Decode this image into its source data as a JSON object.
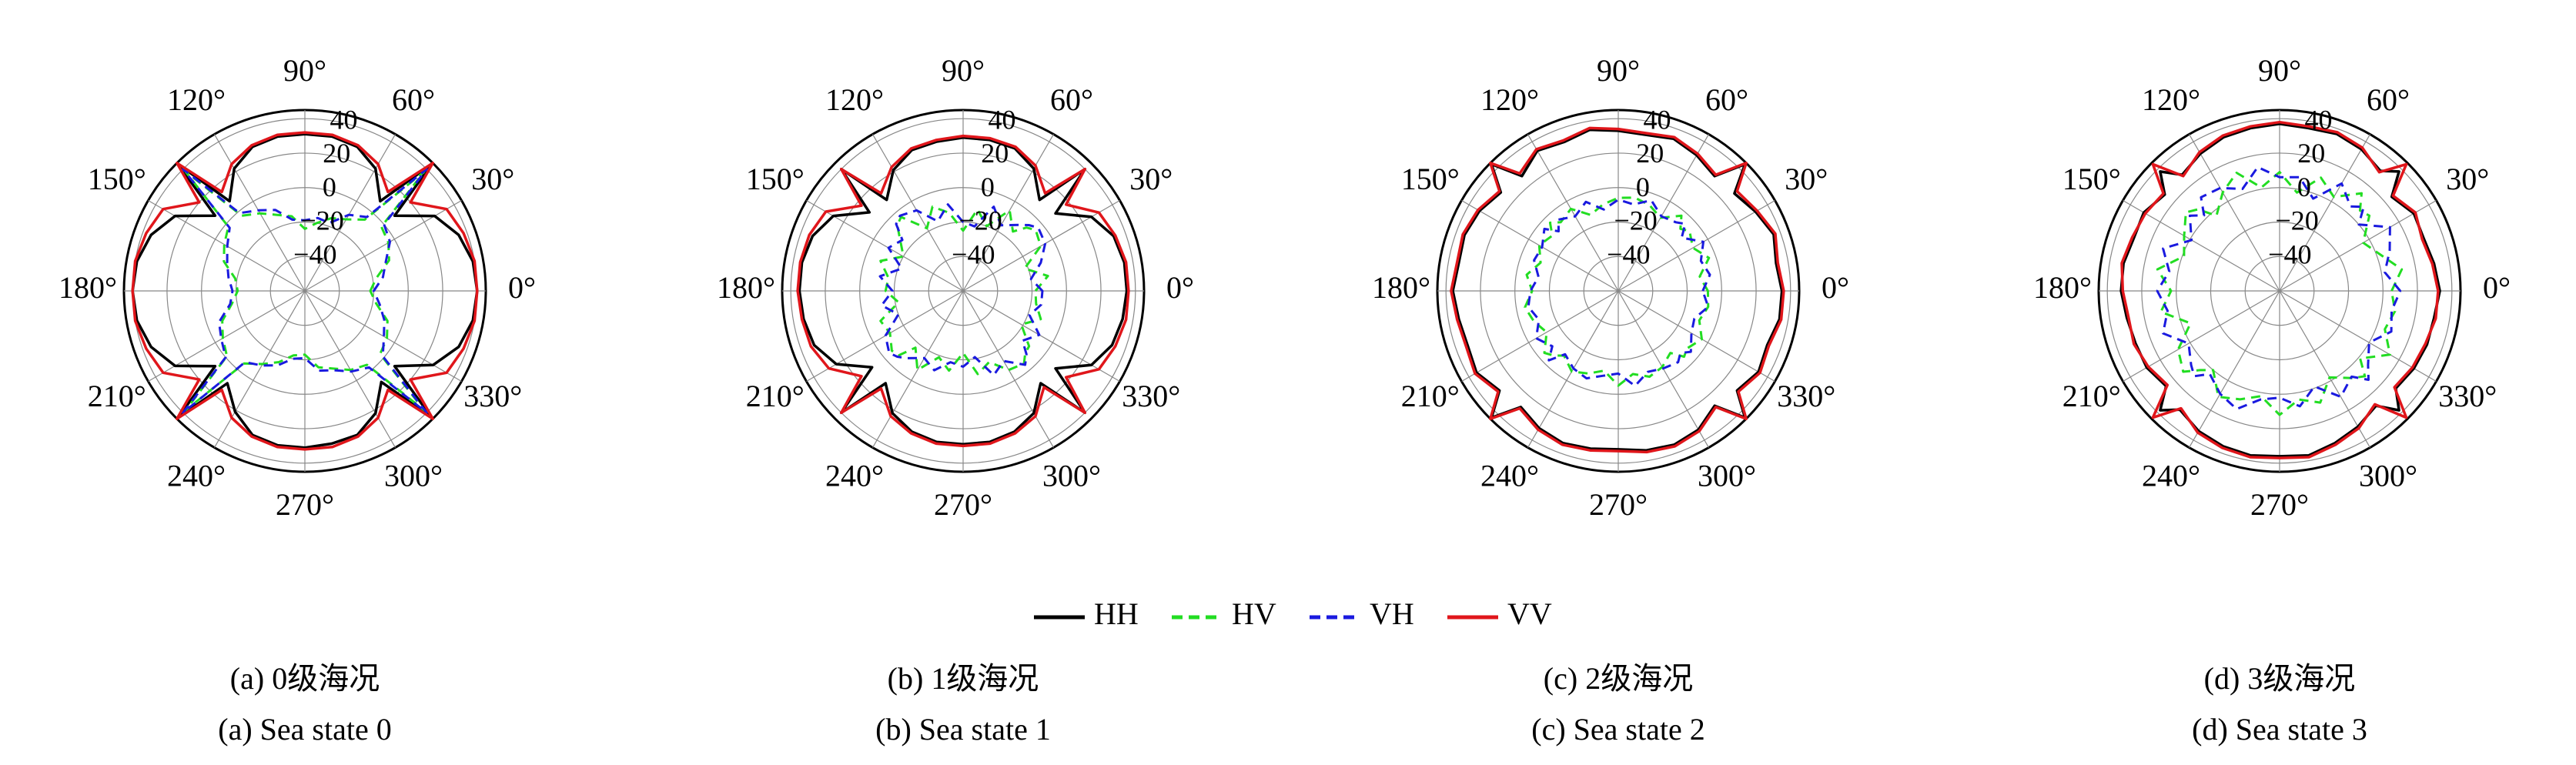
{
  "chart_data": [
    {
      "type": "polar",
      "title": "(a) 0级海况",
      "subtitle": "(a) Sea state 0",
      "theta": [
        0,
        10,
        20,
        30,
        40,
        45,
        50,
        60,
        70,
        80,
        90,
        100,
        110,
        120,
        130,
        135,
        140,
        150,
        160,
        170,
        180,
        190,
        200,
        210,
        220,
        225,
        230,
        240,
        250,
        260,
        270,
        280,
        290,
        300,
        310,
        315,
        320,
        330,
        340,
        350
      ],
      "rlim": [
        -60,
        45
      ],
      "rticks": [
        {
          "value": -40,
          "label": "−40"
        },
        {
          "value": -20,
          "label": "−20"
        },
        0,
        20,
        40
      ],
      "thetaticks": [
        {
          "value": 0,
          "label": "0°"
        },
        {
          "value": 30,
          "label": "30°"
        },
        {
          "value": 60,
          "label": "60°"
        },
        {
          "value": 90,
          "label": "90°"
        },
        {
          "value": 120,
          "label": "120°"
        },
        {
          "value": 150,
          "label": "150°"
        },
        {
          "value": 180,
          "label": "180°"
        },
        {
          "value": 210,
          "label": "210°"
        },
        {
          "value": 240,
          "label": "240°"
        },
        {
          "value": 270,
          "label": "270°"
        },
        {
          "value": 300,
          "label": "300°"
        },
        {
          "value": 330,
          "label": "330°"
        }
      ],
      "series": [
        {
          "name": "HH",
          "color": "#000000",
          "dash": false,
          "values": [
            40,
            39,
            35,
            27,
            8,
            44,
            8,
            22,
            29,
            31,
            31,
            31,
            29,
            22,
            8,
            44,
            8,
            27,
            35,
            39,
            40,
            39,
            35,
            27,
            8,
            44,
            10,
            21,
            29,
            31,
            31,
            30,
            29,
            22,
            9,
            44,
            8,
            26,
            35,
            39
          ]
        },
        {
          "name": "HV",
          "color": "#22dd22",
          "dash": true,
          "values": [
            -22,
            -18,
            -8,
            -4,
            -2,
            38,
            -6,
            -12,
            -15,
            -20,
            -24,
            -16,
            -13,
            -8,
            -3,
            38,
            -2,
            -6,
            -10,
            -19,
            -21,
            -17,
            -9,
            -5,
            -1,
            38,
            -5,
            -11,
            -16,
            -22,
            -23,
            -15,
            -12,
            -7,
            -4,
            38,
            -3,
            -5,
            -9,
            -18
          ]
        },
        {
          "name": "VH",
          "color": "#1a1adf",
          "dash": true,
          "values": [
            -20,
            -14,
            -10,
            -3,
            0,
            40,
            -4,
            -9,
            -18,
            -17,
            -19,
            -18,
            -10,
            -6,
            -1,
            40,
            -3,
            -8,
            -12,
            -15,
            -18,
            -16,
            -7,
            -4,
            0,
            40,
            -6,
            -10,
            -14,
            -20,
            -21,
            -13,
            -11,
            -6,
            -2,
            40,
            -1,
            -7,
            -11,
            -16
          ]
        },
        {
          "name": "VV",
          "color": "#e0161b",
          "dash": false,
          "values": [
            40,
            40,
            38,
            35,
            20,
            45,
            15,
            25,
            30,
            32,
            32,
            32,
            30,
            25,
            15,
            45,
            20,
            35,
            38,
            40,
            40,
            40,
            38,
            35,
            20,
            45,
            15,
            25,
            30,
            32,
            32,
            32,
            30,
            25,
            15,
            45,
            20,
            35,
            38,
            40
          ]
        }
      ]
    },
    {
      "type": "polar",
      "title": "(b) 1级海况",
      "subtitle": "(b) Sea state 1",
      "theta": [
        0,
        10,
        20,
        30,
        40,
        45,
        50,
        60,
        70,
        80,
        90,
        100,
        110,
        120,
        130,
        135,
        140,
        150,
        160,
        170,
        180,
        190,
        200,
        210,
        220,
        225,
        230,
        240,
        250,
        260,
        270,
        280,
        290,
        300,
        310,
        315,
        320,
        330,
        340,
        350
      ],
      "rlim": [
        -60,
        45
      ],
      "rticks": [
        {
          "value": -40,
          "label": "−40"
        },
        {
          "value": -20,
          "label": "−20"
        },
        0,
        20,
        40
      ],
      "thetaticks": [
        {
          "value": 0,
          "label": "0°"
        },
        {
          "value": 30,
          "label": "30°"
        },
        {
          "value": 60,
          "label": "60°"
        },
        {
          "value": 90,
          "label": "90°"
        },
        {
          "value": 120,
          "label": "120°"
        },
        {
          "value": 150,
          "label": "150°"
        },
        {
          "value": 180,
          "label": "180°"
        },
        {
          "value": 210,
          "label": "210°"
        },
        {
          "value": 240,
          "label": "240°"
        },
        {
          "value": 270,
          "label": "270°"
        },
        {
          "value": 300,
          "label": "300°"
        },
        {
          "value": 330,
          "label": "330°"
        }
      ],
      "series": [
        {
          "color": "#000000",
          "dash": false,
          "values": [
            35,
            35,
            33,
            26,
            10,
            40,
            9,
            22,
            28,
            29,
            29,
            28,
            27,
            21,
            9,
            40,
            11,
            27,
            33,
            35,
            35,
            34,
            32,
            25,
            9,
            40,
            10,
            22,
            27,
            29,
            29,
            29,
            27,
            22,
            10,
            40,
            10,
            26,
            32,
            34
          ]
        },
        {
          "color": "#22dd22",
          "dash": true,
          "values": [
            -18,
            -10,
            -22,
            -8,
            -5,
            -8,
            -15,
            -6,
            -20,
            -12,
            -25,
            -14,
            -8,
            -18,
            -4,
            -6,
            -12,
            -20,
            -9,
            -16,
            -15,
            -22,
            -9,
            -11,
            -6,
            -7,
            -17,
            -7,
            -19,
            -13,
            -24,
            -11,
            -16,
            -7,
            -5,
            -9,
            -10,
            -21,
            -12,
            -17
          ]
        },
        {
          "color": "#1a1adf",
          "dash": true,
          "values": [
            -14,
            -20,
            -12,
            -5,
            -3,
            -6,
            -10,
            -16,
            -8,
            -22,
            -20,
            -9,
            -17,
            -6,
            -3,
            -5,
            -14,
            -10,
            -22,
            -11,
            -19,
            -12,
            -20,
            -8,
            -4,
            -6,
            -9,
            -15,
            -11,
            -18,
            -16,
            -21,
            -8,
            -13,
            -4,
            -8,
            -15,
            -9,
            -19,
            -14
          ]
        },
        {
          "color": "#e0161b",
          "dash": false,
          "values": [
            36,
            36,
            34,
            31,
            18,
            40,
            14,
            24,
            29,
            30,
            30,
            29,
            28,
            23,
            14,
            40,
            17,
            32,
            35,
            36,
            36,
            35,
            34,
            30,
            17,
            40,
            14,
            24,
            28,
            30,
            30,
            30,
            28,
            24,
            13,
            40,
            18,
            31,
            34,
            36
          ]
        }
      ]
    },
    {
      "type": "polar",
      "title": "(c) 2级海况",
      "subtitle": "(c) Sea state 2",
      "theta": [
        0,
        10,
        20,
        30,
        40,
        45,
        50,
        60,
        70,
        80,
        90,
        100,
        110,
        120,
        130,
        135,
        140,
        150,
        160,
        170,
        180,
        190,
        200,
        210,
        220,
        225,
        230,
        240,
        250,
        260,
        270,
        280,
        290,
        300,
        310,
        315,
        320,
        330,
        340,
        350
      ],
      "rlim": [
        -60,
        45
      ],
      "rticks": [
        {
          "value": -40,
          "label": "−40"
        },
        {
          "value": -20,
          "label": "−20"
        },
        0,
        20,
        40
      ],
      "thetaticks": [
        {
          "value": 0,
          "label": "0°"
        },
        {
          "value": 30,
          "label": "30°"
        },
        {
          "value": 60,
          "label": "60°"
        },
        {
          "value": 90,
          "label": "90°"
        },
        {
          "value": 120,
          "label": "120°"
        },
        {
          "value": 150,
          "label": "150°"
        },
        {
          "value": 180,
          "label": "180°"
        },
        {
          "value": 210,
          "label": "210°"
        },
        {
          "value": 240,
          "label": "240°"
        },
        {
          "value": 270,
          "label": "270°"
        },
        {
          "value": 300,
          "label": "300°"
        },
        {
          "value": 330,
          "label": "330°"
        }
      ],
      "series": [
        {
          "color": "#000000",
          "dash": false,
          "values": [
            35,
            33,
            36,
            32,
            28,
            44,
            27,
            31,
            34,
            32,
            33,
            35,
            32,
            34,
            27,
            44,
            29,
            33,
            35,
            34,
            36,
            34,
            33,
            35,
            30,
            44,
            28,
            32,
            34,
            33,
            32,
            34,
            35,
            33,
            27,
            44,
            30,
            34,
            32,
            35
          ]
        },
        {
          "color": "#22dd22",
          "dash": true,
          "values": [
            -8,
            -12,
            -4,
            -10,
            -6,
            -9,
            -3,
            -11,
            -7,
            -5,
            -6,
            -9,
            -13,
            -5,
            -8,
            -4,
            -10,
            -7,
            -12,
            -6,
            -10,
            -5,
            -8,
            -12,
            -4,
            -7,
            -11,
            -6,
            -9,
            -13,
            -5,
            -11,
            -7,
            -9,
            -13,
            -6,
            -8,
            -4,
            -10,
            -7
          ]
        },
        {
          "color": "#1a1adf",
          "dash": true,
          "values": [
            -11,
            -6,
            -9,
            -3,
            -12,
            -5,
            -8,
            -10,
            -4,
            -9,
            -7,
            -12,
            -5,
            -10,
            -6,
            -11,
            -4,
            -9,
            -8,
            -13,
            -9,
            -7,
            -11,
            -5,
            -10,
            -3,
            -12,
            -8,
            -6,
            -10,
            -12,
            -4,
            -10,
            -8,
            -6,
            -9,
            -5,
            -11,
            -13,
            -7
          ]
        },
        {
          "color": "#e0161b",
          "dash": false,
          "values": [
            36,
            34,
            37,
            33,
            30,
            45,
            28,
            32,
            35,
            33,
            34,
            36,
            33,
            35,
            29,
            45,
            30,
            34,
            36,
            35,
            37,
            35,
            34,
            36,
            31,
            45,
            29,
            33,
            35,
            34,
            33,
            35,
            36,
            34,
            28,
            45,
            31,
            35,
            33,
            36
          ]
        }
      ]
    },
    {
      "type": "polar",
      "title": "(d) 3级海况",
      "subtitle": "(d) Sea state 3",
      "theta": [
        0,
        10,
        20,
        30,
        40,
        45,
        50,
        60,
        70,
        80,
        90,
        100,
        110,
        120,
        130,
        135,
        140,
        150,
        160,
        170,
        180,
        190,
        200,
        210,
        220,
        225,
        230,
        240,
        250,
        260,
        270,
        280,
        290,
        300,
        310,
        315,
        320,
        330,
        340,
        350
      ],
      "rlim": [
        -60,
        45
      ],
      "rticks": [
        {
          "value": -40,
          "label": "−40"
        },
        {
          "value": -20,
          "label": "−20"
        },
        0,
        20,
        40
      ],
      "thetaticks": [
        {
          "value": 0,
          "label": "0°"
        },
        {
          "value": 30,
          "label": "30°"
        },
        {
          "value": 60,
          "label": "60°"
        },
        {
          "value": 90,
          "label": "90°"
        },
        {
          "value": 120,
          "label": "120°"
        },
        {
          "value": 150,
          "label": "150°"
        },
        {
          "value": 180,
          "label": "180°"
        },
        {
          "value": 210,
          "label": "210°"
        },
        {
          "value": 240,
          "label": "240°"
        },
        {
          "value": 270,
          "label": "270°"
        },
        {
          "value": 300,
          "label": "300°"
        },
        {
          "value": 330,
          "label": "330°"
        }
      ],
      "series": [
        {
          "color": "#000000",
          "dash": false,
          "values": [
            33,
            31,
            29,
            30,
            25,
            38,
            31,
            35,
            37,
            36,
            37,
            36,
            35,
            32,
            28,
            38,
            27,
            31,
            30,
            32,
            32,
            30,
            29,
            29,
            26,
            38,
            30,
            34,
            36,
            37,
            36,
            37,
            34,
            31,
            27,
            38,
            28,
            30,
            31,
            31
          ]
        },
        {
          "color": "#22dd22",
          "dash": true,
          "values": [
            5,
            12,
            2,
            -4,
            8,
            6,
            14,
            3,
            10,
            -2,
            9,
            1,
            13,
            6,
            -3,
            7,
            11,
            4,
            -1,
            12,
            3,
            10,
            -5,
            8,
            13,
            5,
            0,
            11,
            7,
            2,
            12,
            4,
            9,
            -2,
            6,
            10,
            1,
            14,
            5,
            8
          ]
        },
        {
          "color": "#1a1adf",
          "dash": true,
          "values": [
            10,
            2,
            8,
            14,
            0,
            9,
            4,
            12,
            -3,
            7,
            6,
            13,
            3,
            9,
            11,
            2,
            8,
            -1,
            12,
            5,
            11,
            6,
            12,
            1,
            7,
            10,
            3,
            9,
            13,
            4,
            2,
            8,
            -1,
            11,
            5,
            13,
            7,
            0,
            9,
            6
          ]
        },
        {
          "color": "#e0161b",
          "dash": false,
          "values": [
            32,
            30,
            28,
            31,
            26,
            44,
            30,
            36,
            38,
            37,
            38,
            37,
            36,
            33,
            27,
            44,
            28,
            30,
            31,
            33,
            31,
            29,
            30,
            28,
            25,
            44,
            29,
            35,
            37,
            38,
            37,
            38,
            35,
            32,
            26,
            44,
            27,
            29,
            30,
            32
          ]
        }
      ]
    }
  ]
}
